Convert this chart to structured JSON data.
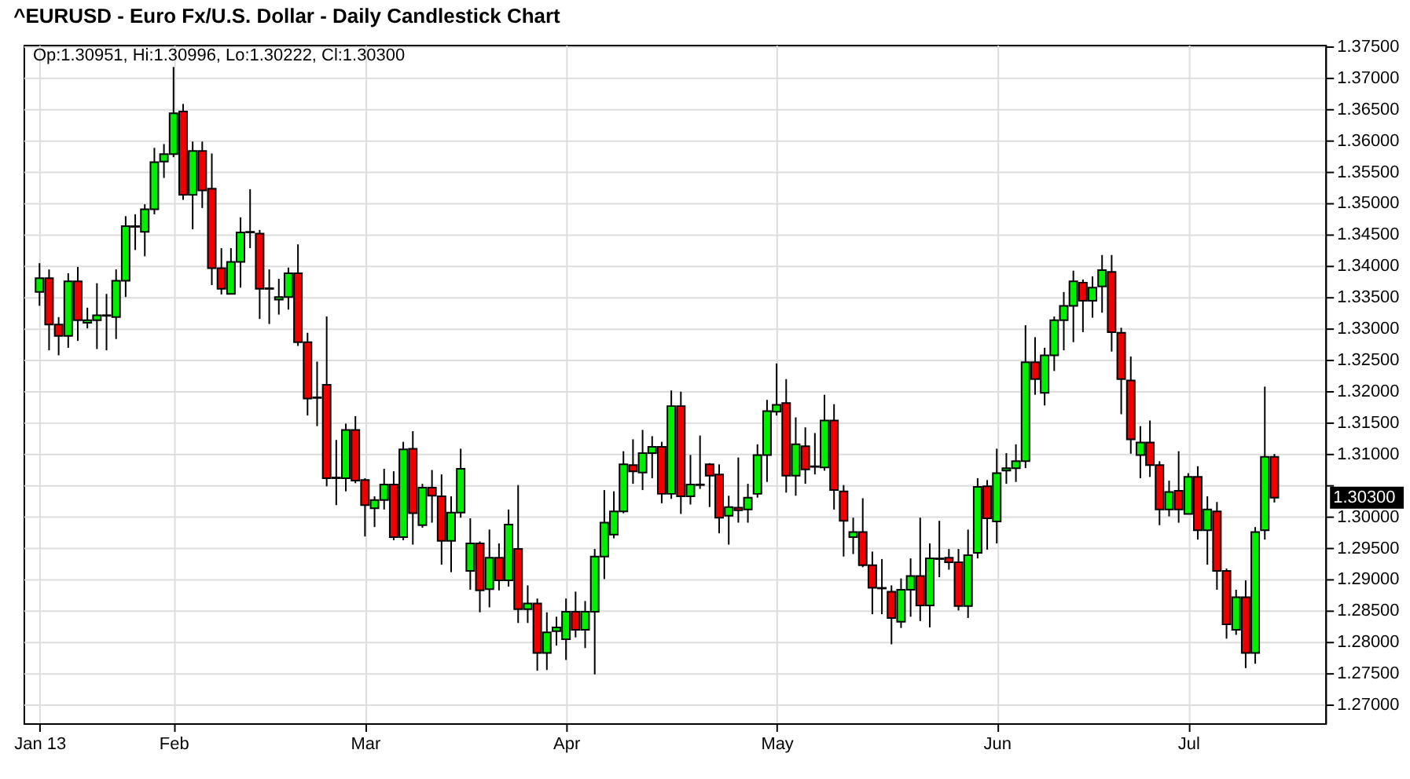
{
  "chart_data": {
    "type": "candlestick",
    "title": "^EURUSD - Euro Fx/U.S. Dollar - Daily Candlestick Chart",
    "categories": [
      "Jan 13",
      null,
      null,
      null,
      null,
      null,
      null,
      null,
      null,
      null,
      null,
      null,
      null,
      null,
      "Feb",
      null,
      null,
      null,
      null,
      null,
      null,
      null,
      null,
      null,
      null,
      null,
      null,
      null,
      null,
      null,
      null,
      null,
      null,
      null,
      "Mar",
      null,
      null,
      null,
      null,
      null,
      null,
      null,
      null,
      null,
      null,
      null,
      null,
      null,
      null,
      null,
      null,
      null,
      null,
      null,
      null,
      "Apr",
      null,
      null,
      null,
      null,
      null,
      null,
      null,
      null,
      null,
      null,
      null,
      null,
      null,
      null,
      null,
      null,
      null,
      null,
      null,
      null,
      null,
      "May",
      null,
      null,
      null,
      null,
      null,
      null,
      null,
      null,
      null,
      null,
      null,
      null,
      null,
      null,
      null,
      null,
      null,
      null,
      null,
      null,
      null,
      null,
      "Jun",
      null,
      null,
      null,
      null,
      null,
      null,
      null,
      null,
      null,
      null,
      null,
      null,
      null,
      null,
      null,
      null,
      null,
      null,
      null,
      "Jul",
      null,
      null,
      null,
      null,
      null,
      null,
      null,
      null,
      null
    ],
    "ohlc": [
      [
        1.3358,
        1.3404,
        1.3336,
        1.338
      ],
      [
        1.338,
        1.3394,
        1.3265,
        1.3306
      ],
      [
        1.3306,
        1.3318,
        1.3257,
        1.3288
      ],
      [
        1.3288,
        1.3388,
        1.3269,
        1.3375
      ],
      [
        1.3375,
        1.3398,
        1.328,
        1.3313
      ],
      [
        1.3309,
        1.3333,
        1.33,
        1.3313
      ],
      [
        1.3313,
        1.3372,
        1.3267,
        1.3321
      ],
      [
        1.332,
        1.3355,
        1.3265,
        1.3321
      ],
      [
        1.3318,
        1.3394,
        1.3283,
        1.3376
      ],
      [
        1.3376,
        1.3479,
        1.335,
        1.3463
      ],
      [
        1.3462,
        1.3482,
        1.3425,
        1.3463
      ],
      [
        1.3454,
        1.3498,
        1.3415,
        1.349
      ],
      [
        1.349,
        1.3588,
        1.3482,
        1.3565
      ],
      [
        1.3566,
        1.3594,
        1.354,
        1.3578
      ],
      [
        1.3578,
        1.3717,
        1.3573,
        1.3643
      ],
      [
        1.3646,
        1.3658,
        1.3505,
        1.3513
      ],
      [
        1.3513,
        1.3598,
        1.3458,
        1.3583
      ],
      [
        1.3583,
        1.3598,
        1.3492,
        1.352
      ],
      [
        1.3523,
        1.3579,
        1.3369,
        1.3396
      ],
      [
        1.3396,
        1.3428,
        1.3354,
        1.3363
      ],
      [
        1.3355,
        1.3428,
        1.3354,
        1.3406
      ],
      [
        1.3406,
        1.3477,
        1.3365,
        1.3453
      ],
      [
        1.3454,
        1.3522,
        1.3428,
        1.3453
      ],
      [
        1.3451,
        1.3457,
        1.3315,
        1.3363
      ],
      [
        1.3364,
        1.3394,
        1.3307,
        1.3363
      ],
      [
        1.3346,
        1.3379,
        1.3322,
        1.335
      ],
      [
        1.335,
        1.3397,
        1.333,
        1.3388
      ],
      [
        1.3388,
        1.3434,
        1.3272,
        1.3278
      ],
      [
        1.3278,
        1.3293,
        1.3161,
        1.3188
      ],
      [
        1.319,
        1.3247,
        1.3144,
        1.3189
      ],
      [
        1.321,
        1.3319,
        1.3048,
        1.3061
      ],
      [
        1.3061,
        1.3122,
        1.3018,
        1.3062
      ],
      [
        1.3061,
        1.3148,
        1.304,
        1.3138
      ],
      [
        1.3138,
        1.316,
        1.3053,
        1.3057
      ],
      [
        1.3058,
        1.3061,
        1.2968,
        1.3018
      ],
      [
        1.3013,
        1.3032,
        1.2983,
        1.3026
      ],
      [
        1.3026,
        1.3076,
        1.3011,
        1.3051
      ],
      [
        1.3051,
        1.3072,
        1.2962,
        1.2967
      ],
      [
        1.2967,
        1.3119,
        1.2962,
        1.3107
      ],
      [
        1.3108,
        1.3136,
        1.2955,
        1.3005
      ],
      [
        1.2986,
        1.3052,
        1.2982,
        1.3046
      ],
      [
        1.3046,
        1.3074,
        1.299,
        1.3033
      ],
      [
        1.3032,
        1.3067,
        1.2923,
        1.2961
      ],
      [
        1.2961,
        1.3032,
        1.2911,
        1.3006
      ],
      [
        1.3006,
        1.3108,
        1.2998,
        1.3076
      ],
      [
        1.2913,
        1.2997,
        1.2883,
        1.2957
      ],
      [
        1.2957,
        1.296,
        1.2847,
        1.2882
      ],
      [
        1.2884,
        1.2979,
        1.2855,
        1.2934
      ],
      [
        1.2934,
        1.2957,
        1.2882,
        1.2898
      ],
      [
        1.2898,
        1.3011,
        1.2888,
        1.2987
      ],
      [
        1.2948,
        1.305,
        1.283,
        1.2852
      ],
      [
        1.2852,
        1.289,
        1.283,
        1.2861
      ],
      [
        1.2861,
        1.2869,
        1.2754,
        1.2782
      ],
      [
        1.2782,
        1.2847,
        1.2755,
        1.2815
      ],
      [
        1.2817,
        1.284,
        1.2794,
        1.2823
      ],
      [
        1.2804,
        1.2869,
        1.2771,
        1.2848
      ],
      [
        1.2848,
        1.288,
        1.2807,
        1.2819
      ],
      [
        1.2819,
        1.2865,
        1.279,
        1.2848
      ],
      [
        1.2848,
        1.2948,
        1.2748,
        1.2936
      ],
      [
        1.2936,
        1.3042,
        1.29,
        1.299
      ],
      [
        1.2971,
        1.304,
        1.2965,
        1.3008
      ],
      [
        1.3008,
        1.3104,
        1.3005,
        1.3083
      ],
      [
        1.3082,
        1.3123,
        1.3052,
        1.3072
      ],
      [
        1.307,
        1.3138,
        1.3042,
        1.3101
      ],
      [
        1.3101,
        1.3128,
        1.3061,
        1.3111
      ],
      [
        1.3111,
        1.3119,
        1.3021,
        1.3036
      ],
      [
        1.3036,
        1.3201,
        1.3028,
        1.3176
      ],
      [
        1.3176,
        1.3199,
        1.3004,
        1.3032
      ],
      [
        1.3032,
        1.3098,
        1.3019,
        1.3051
      ],
      [
        1.305,
        1.3129,
        1.3044,
        1.3051
      ],
      [
        1.3083,
        1.3085,
        1.3015,
        1.3065
      ],
      [
        1.3067,
        1.3083,
        1.2973,
        1.2998
      ],
      [
        1.3001,
        1.3033,
        1.2955,
        1.3015
      ],
      [
        1.3014,
        1.3094,
        1.299,
        1.301
      ],
      [
        1.3011,
        1.3052,
        1.299,
        1.303
      ],
      [
        1.3036,
        1.3115,
        1.303,
        1.3098
      ],
      [
        1.3098,
        1.3186,
        1.3055,
        1.3168
      ],
      [
        1.3167,
        1.3244,
        1.3161,
        1.3178
      ],
      [
        1.3181,
        1.3219,
        1.3038,
        1.3065
      ],
      [
        1.3065,
        1.3158,
        1.3033,
        1.3115
      ],
      [
        1.3112,
        1.3142,
        1.3052,
        1.3075
      ],
      [
        1.3079,
        1.3133,
        1.3067,
        1.308
      ],
      [
        1.3078,
        1.3194,
        1.3073,
        1.3153
      ],
      [
        1.3153,
        1.3179,
        1.3011,
        1.3042
      ],
      [
        1.304,
        1.305,
        1.2936,
        1.2993
      ],
      [
        1.2967,
        1.2998,
        1.294,
        1.2975
      ],
      [
        1.2975,
        1.3029,
        1.2919,
        1.2922
      ],
      [
        1.2922,
        1.2944,
        1.2844,
        1.2886
      ],
      [
        1.2886,
        1.2932,
        1.2844,
        1.2885
      ],
      [
        1.288,
        1.289,
        1.2796,
        1.2838
      ],
      [
        1.2832,
        1.2901,
        1.2822,
        1.2883
      ],
      [
        1.2883,
        1.2933,
        1.284,
        1.2905
      ],
      [
        1.2905,
        1.2998,
        1.2833,
        1.2858
      ],
      [
        1.2858,
        1.2957,
        1.2823,
        1.2933
      ],
      [
        1.2932,
        1.2993,
        1.2903,
        1.2933
      ],
      [
        1.2934,
        1.2948,
        1.2915,
        1.2927
      ],
      [
        1.2927,
        1.2948,
        1.285,
        1.2857
      ],
      [
        1.2857,
        1.2979,
        1.2838,
        1.2938
      ],
      [
        1.2942,
        1.3061,
        1.2933,
        1.3047
      ],
      [
        1.3048,
        1.3058,
        1.2947,
        1.2997
      ],
      [
        1.2992,
        1.3108,
        1.2957,
        1.3069
      ],
      [
        1.3073,
        1.3101,
        1.3052,
        1.3077
      ],
      [
        1.3077,
        1.3115,
        1.3055,
        1.3088
      ],
      [
        1.3088,
        1.3305,
        1.3077,
        1.3246
      ],
      [
        1.3246,
        1.3286,
        1.3194,
        1.3219
      ],
      [
        1.3197,
        1.3269,
        1.3177,
        1.3257
      ],
      [
        1.3257,
        1.3319,
        1.3232,
        1.3313
      ],
      [
        1.3313,
        1.3358,
        1.3265,
        1.3336
      ],
      [
        1.3336,
        1.3392,
        1.3278,
        1.3375
      ],
      [
        1.3373,
        1.3378,
        1.3294,
        1.3344
      ],
      [
        1.3344,
        1.3383,
        1.3317,
        1.3365
      ],
      [
        1.3367,
        1.3417,
        1.3325,
        1.3393
      ],
      [
        1.339,
        1.3417,
        1.3263,
        1.3294
      ],
      [
        1.3293,
        1.3301,
        1.3163,
        1.3219
      ],
      [
        1.3217,
        1.3255,
        1.31,
        1.3123
      ],
      [
        1.3098,
        1.3144,
        1.3061,
        1.3118
      ],
      [
        1.3118,
        1.3153,
        1.3063,
        1.3082
      ],
      [
        1.3082,
        1.3088,
        1.2986,
        1.3011
      ],
      [
        1.3011,
        1.3057,
        1.3,
        1.3039
      ],
      [
        1.3041,
        1.3104,
        1.299,
        1.3011
      ],
      [
        1.3004,
        1.3069,
        1.3004,
        1.3063
      ],
      [
        1.3063,
        1.308,
        1.2963,
        1.2978
      ],
      [
        1.2978,
        1.3032,
        1.2923,
        1.3011
      ],
      [
        1.3008,
        1.3023,
        1.2883,
        1.2913
      ],
      [
        1.2913,
        1.2917,
        1.2805,
        1.2828
      ],
      [
        1.2819,
        1.2883,
        1.2811,
        1.2871
      ],
      [
        1.2871,
        1.2898,
        1.2758,
        1.2782
      ],
      [
        1.2782,
        1.2983,
        1.2765,
        1.2975
      ],
      [
        1.2978,
        1.3207,
        1.2963,
        1.3095
      ],
      [
        1.30951,
        1.30996,
        1.30222,
        1.303
      ]
    ],
    "colors": [
      "#00ee00",
      "#ee0000",
      "#ee0000",
      "#00ee00",
      "#ee0000",
      "#00ee00",
      "#00ee00",
      "#00ee00",
      "#00ee00",
      "#00ee00",
      "#00ee00",
      "#00ee00",
      "#00ee00",
      "#00ee00",
      "#00ee00",
      "#ee0000",
      "#00ee00",
      "#ee0000",
      "#ee0000",
      "#ee0000",
      "#00ee00",
      "#00ee00",
      "#ee0000",
      "#ee0000",
      "#ee0000",
      "#00ee00",
      "#00ee00",
      "#ee0000",
      "#ee0000",
      "#ee0000",
      "#ee0000",
      "#00ee00",
      "#00ee00",
      "#ee0000",
      "#ee0000",
      "#00ee00",
      "#00ee00",
      "#ee0000",
      "#00ee00",
      "#ee0000",
      "#00ee00",
      "#ee0000",
      "#ee0000",
      "#00ee00",
      "#00ee00",
      "#00ee00",
      "#ee0000",
      "#00ee00",
      "#ee0000",
      "#00ee00",
      "#ee0000",
      "#00ee00",
      "#ee0000",
      "#00ee00",
      "#00ee00",
      "#00ee00",
      "#ee0000",
      "#00ee00",
      "#00ee00",
      "#00ee00",
      "#00ee00",
      "#00ee00",
      "#ee0000",
      "#00ee00",
      "#00ee00",
      "#ee0000",
      "#00ee00",
      "#ee0000",
      "#00ee00",
      "#00ee00",
      "#ee0000",
      "#ee0000",
      "#00ee00",
      "#ee0000",
      "#00ee00",
      "#00ee00",
      "#00ee00",
      "#00ee00",
      "#ee0000",
      "#00ee00",
      "#ee0000",
      "#00ee00",
      "#00ee00",
      "#ee0000",
      "#ee0000",
      "#00ee00",
      "#ee0000",
      "#ee0000",
      "#ee0000",
      "#ee0000",
      "#00ee00",
      "#00ee00",
      "#ee0000",
      "#00ee00",
      "#00ee00",
      "#ee0000",
      "#ee0000",
      "#00ee00",
      "#00ee00",
      "#ee0000",
      "#00ee00",
      "#00ee00",
      "#00ee00",
      "#00ee00",
      "#ee0000",
      "#00ee00",
      "#00ee00",
      "#00ee00",
      "#00ee00",
      "#ee0000",
      "#00ee00",
      "#00ee00",
      "#ee0000",
      "#ee0000",
      "#ee0000",
      "#00ee00",
      "#ee0000",
      "#ee0000",
      "#00ee00",
      "#ee0000",
      "#00ee00",
      "#ee0000",
      "#00ee00",
      "#ee0000",
      "#ee0000",
      "#00ee00",
      "#ee0000",
      "#00ee00",
      "#00ee00",
      "#ee0000"
    ],
    "ylim": [
      1.267,
      1.37525
    ],
    "yticks": [
      {
        "value": 1.27,
        "label": "1.27000"
      },
      {
        "value": 1.275,
        "label": "1.27500"
      },
      {
        "value": 1.28,
        "label": "1.28000"
      },
      {
        "value": 1.285,
        "label": "1.28500"
      },
      {
        "value": 1.29,
        "label": "1.29000"
      },
      {
        "value": 1.295,
        "label": "1.29500"
      },
      {
        "value": 1.3,
        "label": "1.30000"
      },
      {
        "value": 1.305,
        "label": null
      },
      {
        "value": 1.31,
        "label": "1.31000"
      },
      {
        "value": 1.315,
        "label": "1.31500"
      },
      {
        "value": 1.32,
        "label": "1.32000"
      },
      {
        "value": 1.325,
        "label": "1.32500"
      },
      {
        "value": 1.33,
        "label": "1.33000"
      },
      {
        "value": 1.335,
        "label": "1.33500"
      },
      {
        "value": 1.34,
        "label": "1.34000"
      },
      {
        "value": 1.345,
        "label": "1.34500"
      },
      {
        "value": 1.35,
        "label": "1.35000"
      },
      {
        "value": 1.355,
        "label": "1.35500"
      },
      {
        "value": 1.36,
        "label": "1.36000"
      },
      {
        "value": 1.365,
        "label": "1.36500"
      },
      {
        "value": 1.37,
        "label": "1.37000"
      },
      {
        "value": 1.375,
        "label": "1.37500"
      }
    ],
    "grid": true,
    "annotations": [
      "Op:1.30951, Hi:1.30996, Lo:1.30222, Cl:1.30300",
      "1.30300"
    ]
  }
}
